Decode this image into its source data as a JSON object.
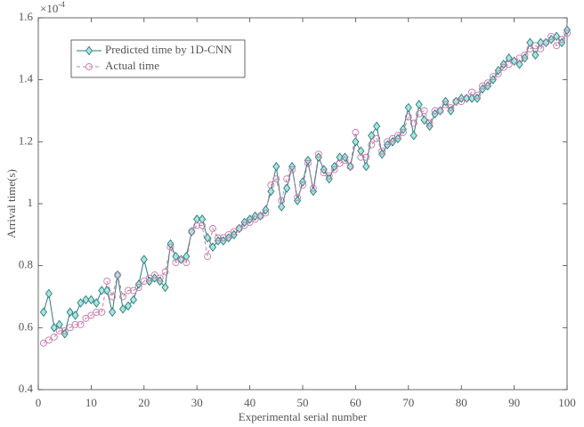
{
  "chart_data": {
    "type": "line",
    "xlabel": "Experimental serial number",
    "ylabel": "Arrival time(s)",
    "y_multiplier": {
      "base": "×10",
      "exponent": "-4"
    },
    "x": [
      1,
      2,
      3,
      4,
      5,
      6,
      7,
      8,
      9,
      10,
      11,
      12,
      13,
      14,
      15,
      16,
      17,
      18,
      19,
      20,
      21,
      22,
      23,
      24,
      25,
      26,
      27,
      28,
      29,
      30,
      31,
      32,
      33,
      34,
      35,
      36,
      37,
      38,
      39,
      40,
      41,
      42,
      43,
      44,
      45,
      46,
      47,
      48,
      49,
      50,
      51,
      52,
      53,
      54,
      55,
      56,
      57,
      58,
      59,
      60,
      61,
      62,
      63,
      64,
      65,
      66,
      67,
      68,
      69,
      70,
      71,
      72,
      73,
      74,
      75,
      76,
      77,
      78,
      79,
      80,
      81,
      82,
      83,
      84,
      85,
      86,
      87,
      88,
      89,
      90,
      91,
      92,
      93,
      94,
      95,
      96,
      97,
      98,
      99,
      100
    ],
    "series": [
      {
        "name": "Predicted time by 1D-CNN",
        "color": "#2a7a78",
        "marker": "diamond",
        "marker_fill": "#a8e6e2",
        "dash": "solid",
        "values": [
          0.65,
          0.71,
          0.6,
          0.61,
          0.58,
          0.65,
          0.64,
          0.68,
          0.69,
          0.69,
          0.68,
          0.72,
          0.72,
          0.65,
          0.77,
          0.66,
          0.67,
          0.69,
          0.74,
          0.82,
          0.75,
          0.76,
          0.75,
          0.73,
          0.87,
          0.83,
          0.82,
          0.83,
          0.91,
          0.95,
          0.95,
          0.89,
          0.86,
          0.88,
          0.88,
          0.89,
          0.9,
          0.92,
          0.94,
          0.95,
          0.96,
          0.96,
          0.98,
          1.04,
          1.12,
          0.99,
          1.05,
          1.12,
          1.01,
          1.07,
          1.14,
          1.04,
          1.15,
          1.11,
          1.08,
          1.12,
          1.15,
          1.15,
          1.12,
          1.2,
          1.17,
          1.12,
          1.22,
          1.25,
          1.16,
          1.19,
          1.2,
          1.21,
          1.24,
          1.31,
          1.22,
          1.32,
          1.27,
          1.25,
          1.29,
          1.3,
          1.33,
          1.3,
          1.33,
          1.34,
          1.34,
          1.34,
          1.34,
          1.37,
          1.38,
          1.4,
          1.43,
          1.45,
          1.47,
          1.46,
          1.45,
          1.47,
          1.52,
          1.48,
          1.52,
          1.52,
          1.53,
          1.54,
          1.52,
          1.56
        ]
      },
      {
        "name": "Actual time",
        "color": "#c878a8",
        "marker": "circle",
        "marker_fill": "none",
        "dash": "dashed",
        "values": [
          0.55,
          0.56,
          0.57,
          0.59,
          0.59,
          0.6,
          0.61,
          0.61,
          0.63,
          0.64,
          0.65,
          0.65,
          0.75,
          0.7,
          0.77,
          0.7,
          0.72,
          0.72,
          0.73,
          0.75,
          0.76,
          0.77,
          0.76,
          0.78,
          0.86,
          0.81,
          0.82,
          0.81,
          0.91,
          0.93,
          0.93,
          0.83,
          0.92,
          0.89,
          0.89,
          0.9,
          0.91,
          0.92,
          0.93,
          0.94,
          0.95,
          0.96,
          0.97,
          1.06,
          1.08,
          1.01,
          1.08,
          1.11,
          1.02,
          1.06,
          1.13,
          1.05,
          1.16,
          1.1,
          1.09,
          1.11,
          1.13,
          1.14,
          1.12,
          1.23,
          1.15,
          1.15,
          1.19,
          1.21,
          1.17,
          1.2,
          1.21,
          1.22,
          1.23,
          1.28,
          1.26,
          1.29,
          1.3,
          1.26,
          1.3,
          1.3,
          1.32,
          1.31,
          1.33,
          1.33,
          1.34,
          1.36,
          1.35,
          1.38,
          1.39,
          1.41,
          1.42,
          1.44,
          1.45,
          1.46,
          1.47,
          1.48,
          1.5,
          1.51,
          1.5,
          1.52,
          1.54,
          1.51,
          1.53,
          1.55
        ]
      }
    ],
    "xlim": [
      0,
      100
    ],
    "xticks": [
      0,
      10,
      20,
      30,
      40,
      50,
      60,
      70,
      80,
      90,
      100
    ],
    "ylim": [
      0.4,
      1.6
    ],
    "yticks": [
      0.4,
      0.6,
      0.8,
      1,
      1.2,
      1.4,
      1.6
    ],
    "legend": "upper left",
    "grid": false
  }
}
